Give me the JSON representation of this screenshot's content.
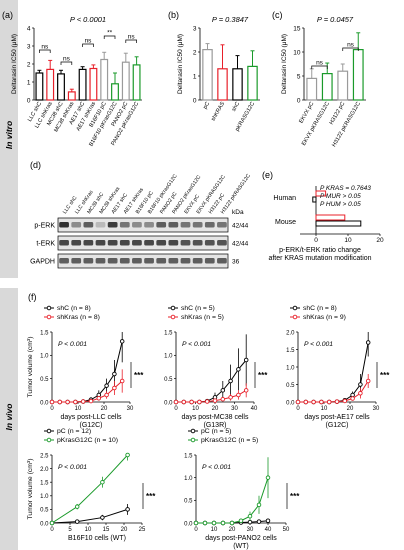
{
  "sidebar": {
    "in_vitro": "In vitro",
    "in_vivo": "In vivo"
  },
  "colors": {
    "black": "#000000",
    "red": "#e8202a",
    "green": "#1a9a2a",
    "grey": "#9a9a9a",
    "band": "#d9d9d9"
  },
  "panels": {
    "a": {
      "label": "(a)",
      "pvalue": "P < 0.0001",
      "ylabel": "Deltarasin IC50 (μM)",
      "sig": [
        "ns",
        "ns",
        "ns",
        "**",
        "ns"
      ],
      "chart_data": {
        "type": "bar",
        "ylim": [
          0,
          4
        ],
        "yticks": [
          "0",
          "1",
          "2",
          "3",
          "4"
        ],
        "categories": [
          "LLC shC",
          "LLC shKras",
          "MC38 shC",
          "MC38 shKras",
          "AE17 shC",
          "AE17 shKras",
          "B16F10 pC",
          "B16F10 pKrasG12C",
          "PANO2 pC",
          "PANO2 pKrasG12C"
        ],
        "values": [
          1.5,
          1.7,
          1.45,
          0.45,
          1.7,
          1.75,
          2.25,
          0.9,
          2.1,
          1.95
        ],
        "errors": [
          0.15,
          0.5,
          0.2,
          0.15,
          0.15,
          0.2,
          0.4,
          0.6,
          0.5,
          0.45
        ],
        "colors": [
          "#000000",
          "#e8202a",
          "#000000",
          "#e8202a",
          "#000000",
          "#e8202a",
          "#9a9a9a",
          "#1a9a2a",
          "#9a9a9a",
          "#1a9a2a"
        ]
      }
    },
    "b": {
      "label": "(b)",
      "pvalue": "P = 0.3847",
      "ylabel": "Deltarasin IC50 (μM)",
      "chart_data": {
        "type": "bar",
        "ylim": [
          0,
          3
        ],
        "yticks": [
          "0",
          "1",
          "2",
          "3"
        ],
        "categories": [
          "pC",
          "shKRAS",
          "shC",
          "pKRASG12C"
        ],
        "values": [
          2.1,
          1.3,
          1.3,
          1.4
        ],
        "errors": [
          0.25,
          1.0,
          0.55,
          0.65
        ],
        "colors": [
          "#9a9a9a",
          "#e8202a",
          "#000000",
          "#1a9a2a"
        ]
      }
    },
    "c": {
      "label": "(c)",
      "pvalue": "P = 0.0457",
      "ylabel": "Deltarasin IC50 (μM)",
      "sig": [
        "ns",
        "ns"
      ],
      "chart_data": {
        "type": "bar",
        "ylim": [
          0,
          15
        ],
        "yticks": [
          "0",
          "5",
          "10",
          "15"
        ],
        "categories": [
          "EKVX pC",
          "EKVX pKRASG12C",
          "H3122 pC",
          "H3122 pKRASG12C"
        ],
        "values": [
          4.5,
          5.5,
          6.0,
          10.5
        ],
        "errors": [
          2.0,
          2.2,
          1.5,
          3.5
        ],
        "colors": [
          "#9a9a9a",
          "#1a9a2a",
          "#9a9a9a",
          "#1a9a2a"
        ]
      }
    },
    "d": {
      "label": "(d)",
      "lanes": [
        "LLC shC",
        "LLC shKras",
        "MC38 shC",
        "MC38 shKras",
        "AE17 shC",
        "AE17 shKras",
        "B16F10 pC",
        "B16F10 pKrasG12C",
        "PANO2 pC",
        "PANO2 pKrasG12C",
        "EKVX pC",
        "EKVX pKRASG12C",
        "H3122 pC",
        "H3122 pKRASG12C"
      ],
      "rows": [
        {
          "name": "p-ERK",
          "size": "42/44"
        },
        {
          "name": "t-ERK",
          "size": "42/44"
        },
        {
          "name": "GAPDH",
          "size": "36"
        }
      ],
      "kda": "kDa"
    },
    "e": {
      "label": "(e)",
      "stats": [
        "P KRAS = 0.7643",
        "P MUR > 0.05",
        "P HUM > 0.05"
      ],
      "xlabel_line1": "p-ERK/t-ERK ratio change",
      "xlabel_line2": "after KRAS mutation modification",
      "chart_data": {
        "type": "bar",
        "orientation": "horizontal",
        "xlim": [
          -5,
          20
        ],
        "xticks": [
          "0",
          "10",
          "20"
        ],
        "categories": [
          "Human",
          "Mouse"
        ],
        "series": [
          {
            "values": [
              3,
              9
            ],
            "color": "#e8202a"
          },
          {
            "values": [
              -1,
              14
            ],
            "color": "#000000"
          }
        ]
      }
    },
    "f": {
      "label": "(f)",
      "ylabel": "Tumor volume (cm³)",
      "plots": [
        {
          "xlabel": "days post-LLC cells",
          "sub": "(G12C)",
          "pvalue": "P < 0.001",
          "stars": "***",
          "legend": [
            "shC (n = 8)",
            "shKras (n = 8)"
          ],
          "chart_data": {
            "type": "line",
            "xlim": [
              0,
              30
            ],
            "ylim": [
              0,
              1.5
            ],
            "xticks": [
              "0",
              "10",
              "20",
              "30"
            ],
            "yticks": [
              "0.0",
              "0.5",
              "1.0",
              "1.5"
            ],
            "series": [
              {
                "x": [
                  0,
                  3,
                  6,
                  9,
                  12,
                  15,
                  18,
                  21,
                  24,
                  27
                ],
                "y": [
                  0,
                  0,
                  0,
                  0,
                  0.01,
                  0.05,
                  0.15,
                  0.35,
                  0.6,
                  1.3
                ],
                "err": [
                  0,
                  0,
                  0,
                  0,
                  0.02,
                  0.05,
                  0.1,
                  0.15,
                  0.3,
                  0.45
                ],
                "color": "#000000",
                "marker": "open"
              },
              {
                "x": [
                  0,
                  3,
                  6,
                  9,
                  12,
                  15,
                  18,
                  21,
                  24,
                  27
                ],
                "y": [
                  0,
                  0,
                  0,
                  0,
                  0.01,
                  0.02,
                  0.08,
                  0.15,
                  0.3,
                  0.45
                ],
                "err": [
                  0,
                  0,
                  0,
                  0,
                  0.01,
                  0.02,
                  0.05,
                  0.08,
                  0.15,
                  0.25
                ],
                "color": "#e8202a",
                "marker": "open"
              }
            ]
          }
        },
        {
          "xlabel": "days post-MC38 cells",
          "sub": "(G13R)",
          "pvalue": "P < 0.001",
          "stars": "***",
          "legend": [
            "shC (n = 5)",
            "shKras (n = 5)"
          ],
          "chart_data": {
            "type": "line",
            "xlim": [
              0,
              40
            ],
            "ylim": [
              0,
              1.5
            ],
            "xticks": [
              "0",
              "10",
              "20",
              "30",
              "40"
            ],
            "yticks": [
              "0.0",
              "0.5",
              "1.0",
              "1.5"
            ],
            "series": [
              {
                "x": [
                  0,
                  4,
                  8,
                  12,
                  16,
                  20,
                  24,
                  28,
                  32,
                  36
                ],
                "y": [
                  0,
                  0,
                  0,
                  0,
                  0.02,
                  0.1,
                  0.25,
                  0.45,
                  0.7,
                  0.9
                ],
                "err": [
                  0,
                  0,
                  0,
                  0,
                  0.02,
                  0.1,
                  0.2,
                  0.35,
                  0.45,
                  0.55
                ],
                "color": "#000000",
                "marker": "open"
              },
              {
                "x": [
                  0,
                  4,
                  8,
                  12,
                  16,
                  20,
                  24,
                  28,
                  32,
                  36
                ],
                "y": [
                  0,
                  0,
                  0,
                  0,
                  0.01,
                  0.03,
                  0.06,
                  0.1,
                  0.15,
                  0.25
                ],
                "err": [
                  0,
                  0,
                  0,
                  0,
                  0.01,
                  0.02,
                  0.04,
                  0.07,
                  0.1,
                  0.15
                ],
                "color": "#e8202a",
                "marker": "open"
              }
            ]
          }
        },
        {
          "xlabel": "days post-AE17 cells",
          "sub": "(G12C)",
          "pvalue": "P < 0.001",
          "stars": "***",
          "legend": [
            "shC (n = 8)",
            "shKras (n = 9)"
          ],
          "chart_data": {
            "type": "line",
            "xlim": [
              0,
              30
            ],
            "ylim": [
              0,
              2.0
            ],
            "xticks": [
              "0",
              "10",
              "20",
              "30"
            ],
            "yticks": [
              "0.0",
              "0.5",
              "1.0",
              "1.5",
              "2.0"
            ],
            "series": [
              {
                "x": [
                  0,
                  3,
                  6,
                  9,
                  12,
                  15,
                  18,
                  21,
                  24,
                  27
                ],
                "y": [
                  0,
                  0,
                  0,
                  0,
                  0,
                  0.01,
                  0.05,
                  0.2,
                  0.5,
                  1.7
                ],
                "err": [
                  0,
                  0,
                  0,
                  0,
                  0,
                  0.01,
                  0.05,
                  0.1,
                  0.3,
                  0.4
                ],
                "color": "#000000",
                "marker": "open"
              },
              {
                "x": [
                  0,
                  3,
                  6,
                  9,
                  12,
                  15,
                  18,
                  21,
                  24,
                  27
                ],
                "y": [
                  0,
                  0,
                  0,
                  0,
                  0,
                  0.01,
                  0.03,
                  0.1,
                  0.25,
                  0.6
                ],
                "err": [
                  0,
                  0,
                  0,
                  0,
                  0,
                  0.01,
                  0.02,
                  0.05,
                  0.15,
                  0.2
                ],
                "color": "#e8202a",
                "marker": "open"
              }
            ]
          }
        },
        {
          "xlabel": "B16F10 cells (WT)",
          "sub": "",
          "pvalue": "P < 0.001",
          "stars": "***",
          "legend": [
            "pC (n = 12)",
            "pKrasG12C (n = 10)"
          ],
          "chart_data": {
            "type": "line",
            "xlim": [
              0,
              25
            ],
            "ylim": [
              0,
              2.5
            ],
            "xticks": [
              "0",
              "5",
              "10",
              "15",
              "20",
              "25"
            ],
            "yticks": [
              "0.0",
              "0.5",
              "1.0",
              "1.5",
              "2.0",
              "2.5"
            ],
            "series": [
              {
                "x": [
                  0,
                  7,
                  14,
                  21
                ],
                "y": [
                  0,
                  0.05,
                  0.2,
                  0.5
                ],
                "err": [
                  0,
                  0.02,
                  0.1,
                  0.2
                ],
                "color": "#000000",
                "marker": "open"
              },
              {
                "x": [
                  0,
                  7,
                  14,
                  21
                ],
                "y": [
                  0,
                  0.6,
                  1.5,
                  2.5
                ],
                "err": [
                  0,
                  0.1,
                  0.2,
                  0.2
                ],
                "color": "#1a9a2a",
                "marker": "open"
              }
            ]
          }
        },
        {
          "xlabel": "days post-PANO2 cells",
          "sub": "(WT)",
          "pvalue": "P < 0.001",
          "stars": "***",
          "legend": [
            "pC (n = 5)",
            "pKrasG12C (n = 5)"
          ],
          "chart_data": {
            "type": "line",
            "xlim": [
              0,
              50
            ],
            "ylim": [
              0,
              1.5
            ],
            "xticks": [
              "0",
              "10",
              "20",
              "30",
              "40",
              "50"
            ],
            "yticks": [
              "0.0",
              "0.5",
              "1.0",
              "1.5"
            ],
            "series": [
              {
                "x": [
                  0,
                  5,
                  10,
                  15,
                  20,
                  25,
                  30,
                  35,
                  40
                ],
                "y": [
                  0,
                  0,
                  0,
                  0,
                  0,
                  0.01,
                  0.02,
                  0.03,
                  0.05
                ],
                "err": [
                  0,
                  0,
                  0,
                  0,
                  0,
                  0.01,
                  0.01,
                  0.02,
                  0.03
                ],
                "color": "#000000",
                "marker": "open"
              },
              {
                "x": [
                  0,
                  5,
                  10,
                  15,
                  20,
                  25,
                  30,
                  35,
                  40
                ],
                "y": [
                  0,
                  0,
                  0,
                  0,
                  0,
                  0.05,
                  0.15,
                  0.4,
                  1.0
                ],
                "err": [
                  0,
                  0,
                  0,
                  0,
                  0,
                  0.05,
                  0.1,
                  0.2,
                  0.45
                ],
                "color": "#1a9a2a",
                "marker": "open"
              }
            ]
          }
        }
      ]
    }
  }
}
